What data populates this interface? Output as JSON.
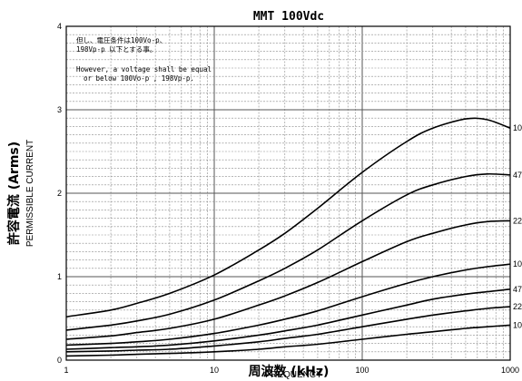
{
  "chart_data": {
    "type": "line",
    "title": "MMT 100Vdc",
    "xlabel_jp": "周波数 (kHz)",
    "xlabel_en": "FREQUENCY",
    "ylabel_jp": "許容電流 (Arms)",
    "ylabel_en": "PERMISSIBLE CURRENT",
    "x_scale": "log",
    "xlim": [
      1,
      1000
    ],
    "ylim": [
      0,
      4
    ],
    "x_ticks": [
      1,
      10,
      100,
      1000
    ],
    "x_tick_labels": [
      "1",
      "10",
      "100",
      "1000"
    ],
    "y_ticks": [
      0,
      1,
      2,
      3,
      4
    ],
    "y_tick_labels": [
      "0",
      "1",
      "2",
      "3",
      "4"
    ],
    "grid": true,
    "annotation": {
      "lines": [
        "但し、電圧条件は100Vo-p、",
        "198Vp-p 以下とする事。",
        "However, a voltage shall be equal",
        "or below 100Vo-p , 198Vp-p."
      ]
    },
    "series": [
      {
        "name": "10",
        "x": [
          1,
          2,
          3,
          5,
          10,
          20,
          30,
          50,
          100,
          200,
          300,
          500,
          700,
          1000
        ],
        "y": [
          0.52,
          0.6,
          0.68,
          0.8,
          1.02,
          1.32,
          1.52,
          1.82,
          2.25,
          2.62,
          2.78,
          2.89,
          2.88,
          2.78
        ]
      },
      {
        "name": "47",
        "x": [
          1,
          2,
          3,
          5,
          10,
          20,
          30,
          50,
          100,
          200,
          300,
          500,
          700,
          1000
        ],
        "y": [
          0.36,
          0.42,
          0.47,
          0.55,
          0.72,
          0.95,
          1.1,
          1.32,
          1.67,
          1.98,
          2.1,
          2.2,
          2.23,
          2.22
        ]
      },
      {
        "name": "22",
        "x": [
          1,
          2,
          3,
          5,
          10,
          20,
          30,
          50,
          100,
          200,
          300,
          500,
          700,
          1000
        ],
        "y": [
          0.25,
          0.29,
          0.33,
          0.38,
          0.49,
          0.66,
          0.77,
          0.93,
          1.18,
          1.42,
          1.52,
          1.62,
          1.66,
          1.67
        ]
      },
      {
        "name": "10",
        "x": [
          1,
          2,
          3,
          5,
          10,
          20,
          30,
          50,
          100,
          200,
          300,
          500,
          700,
          1000
        ],
        "y": [
          0.18,
          0.2,
          0.22,
          0.25,
          0.32,
          0.42,
          0.49,
          0.59,
          0.76,
          0.92,
          1.0,
          1.08,
          1.12,
          1.15
        ]
      },
      {
        "name": "47",
        "x": [
          1,
          2,
          3,
          5,
          10,
          20,
          30,
          50,
          100,
          200,
          300,
          500,
          700,
          1000
        ],
        "y": [
          0.13,
          0.15,
          0.16,
          0.18,
          0.23,
          0.3,
          0.35,
          0.42,
          0.54,
          0.66,
          0.73,
          0.79,
          0.82,
          0.85
        ]
      },
      {
        "name": "22",
        "x": [
          1,
          2,
          3,
          5,
          10,
          20,
          30,
          50,
          100,
          200,
          300,
          500,
          700,
          1000
        ],
        "y": [
          0.1,
          0.11,
          0.12,
          0.13,
          0.17,
          0.22,
          0.26,
          0.31,
          0.4,
          0.49,
          0.54,
          0.59,
          0.62,
          0.64
        ]
      },
      {
        "name": "10",
        "x": [
          1,
          2,
          3,
          5,
          10,
          20,
          30,
          50,
          100,
          200,
          300,
          500,
          700,
          1000
        ],
        "y": [
          0.05,
          0.06,
          0.07,
          0.08,
          0.1,
          0.13,
          0.16,
          0.19,
          0.25,
          0.31,
          0.34,
          0.38,
          0.4,
          0.42
        ]
      }
    ],
    "colors": {
      "line": "#000000",
      "grid": "#8a8a8a",
      "frame": "#000000"
    }
  }
}
